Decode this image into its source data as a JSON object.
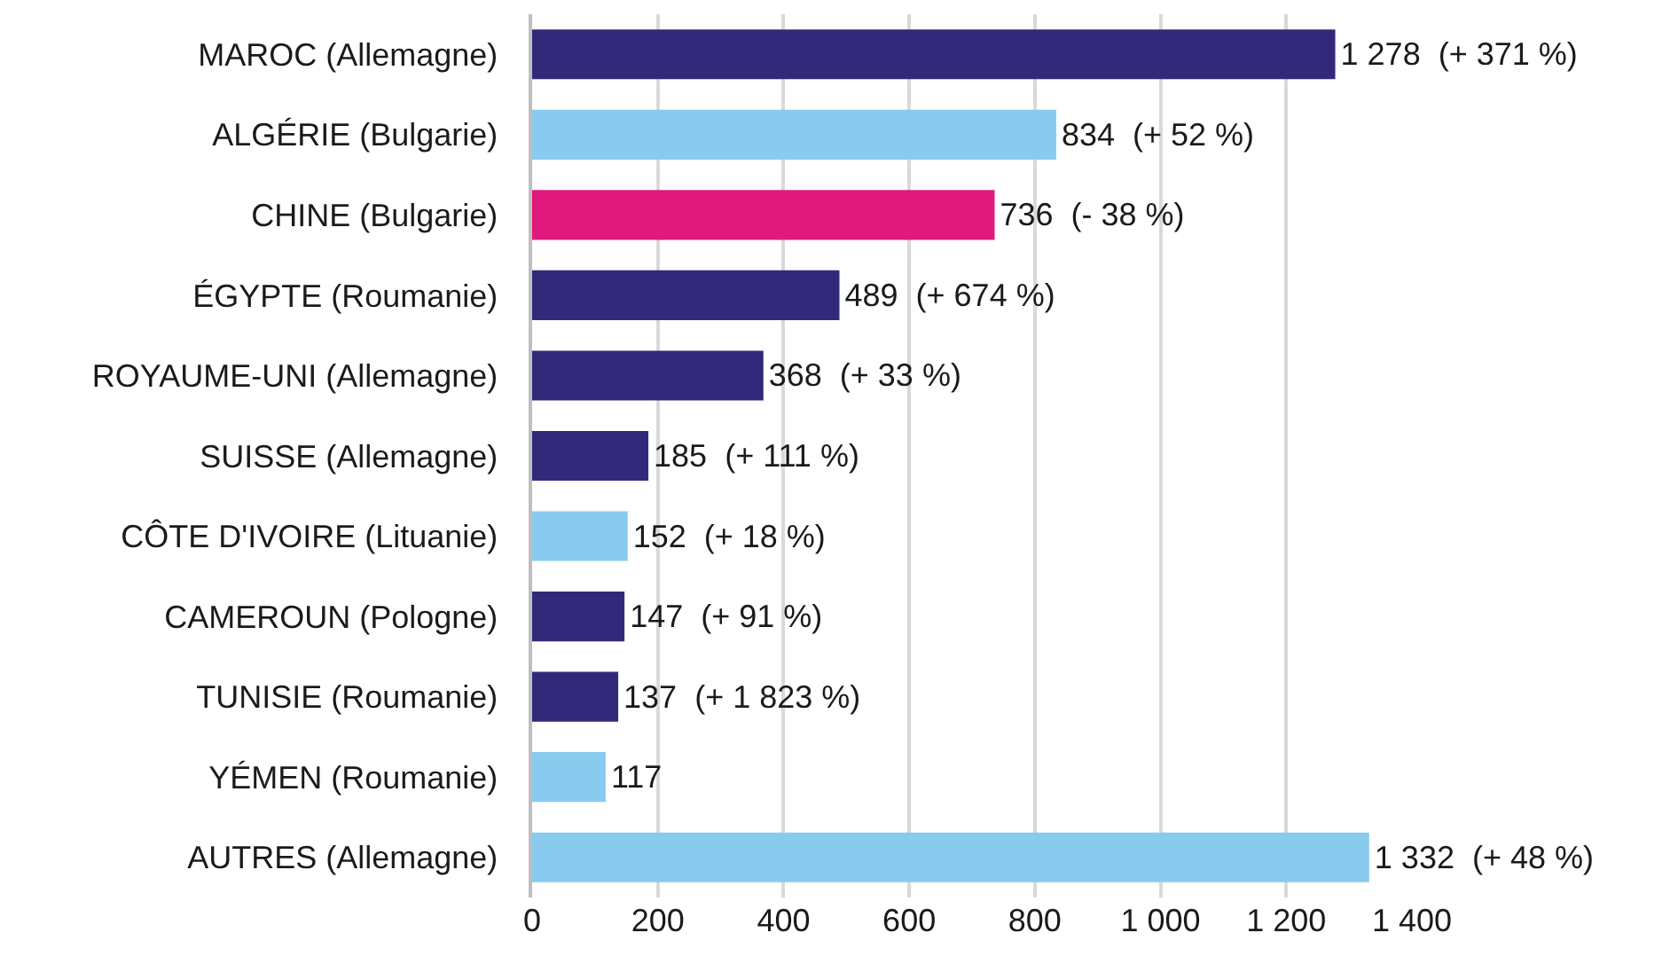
{
  "chart_data": {
    "type": "bar",
    "orientation": "horizontal",
    "categories": [
      "MAROC (Allemagne)",
      "ALGÉRIE (Bulgarie)",
      "CHINE (Bulgarie)",
      "ÉGYPTE (Roumanie)",
      "ROYAUME-UNI (Allemagne)",
      "SUISSE (Allemagne)",
      "CÔTE D'IVOIRE (Lituanie)",
      "CAMEROUN (Pologne)",
      "TUNISIE (Roumanie)",
      "YÉMEN (Roumanie)",
      "AUTRES (Allemagne)"
    ],
    "values": [
      1278,
      834,
      736,
      489,
      368,
      185,
      152,
      147,
      137,
      117,
      1332
    ],
    "colors": [
      "#33297a",
      "#88cbee",
      "#e0197d",
      "#33297a",
      "#33297a",
      "#33297a",
      "#88cbee",
      "#33297a",
      "#33297a",
      "#88cbee",
      "#88cbee"
    ],
    "value_labels": [
      "1 278  (+ 371 %)",
      "834  (+ 52 %)",
      "736  (- 38 %)",
      "489  (+ 674 %)",
      "368  (+ 33 %)",
      "185  (+ 111 %)",
      "152  (+ 18 %)",
      "147  (+ 91 %)",
      "137  (+ 1 823 %)",
      "117",
      "1 332  (+ 48 %)"
    ],
    "xlim": [
      0,
      1400
    ],
    "xticks": [
      0,
      200,
      400,
      600,
      800,
      {
        "value": 1000,
        "label": "1 000"
      },
      {
        "value": 1200,
        "label": "1 200"
      },
      {
        "value": 1400,
        "label": "1 400"
      }
    ],
    "grid": "x"
  }
}
